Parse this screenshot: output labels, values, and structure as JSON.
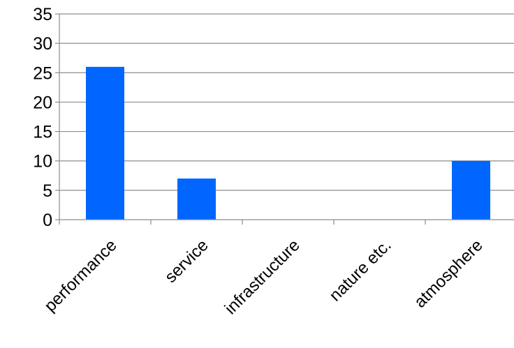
{
  "chart_data": {
    "type": "bar",
    "categories": [
      "performance",
      "service",
      "infrastructure",
      "nature etc.",
      "atmosphere"
    ],
    "values": [
      26,
      7,
      0,
      0,
      10
    ],
    "yticks": [
      "0",
      "5",
      "10",
      "15",
      "20",
      "25",
      "30",
      "35"
    ],
    "ylim": [
      0,
      35
    ],
    "title": "",
    "xlabel": "",
    "ylabel": "",
    "grid": true,
    "legend": "none",
    "bar_color": "#0066FF"
  }
}
